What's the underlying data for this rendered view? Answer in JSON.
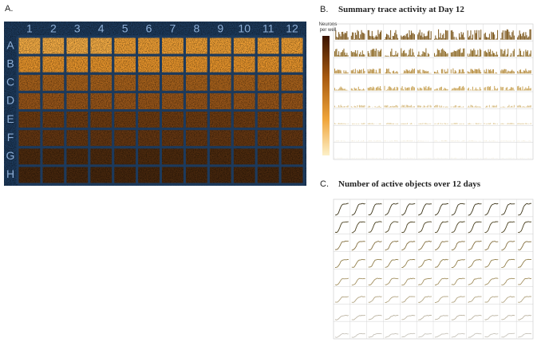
{
  "panel_a": {
    "label": "A.",
    "columns": [
      "1",
      "2",
      "3",
      "4",
      "5",
      "6",
      "7",
      "8",
      "9",
      "10",
      "11",
      "12"
    ],
    "rows": [
      "A",
      "B",
      "C",
      "D",
      "E",
      "F",
      "G",
      "H"
    ]
  },
  "panel_b": {
    "label": "B.",
    "title": "Summary trace activity at Day 12",
    "colorbar_label": "Neurons per well"
  },
  "panel_c": {
    "label": "C.",
    "title": "Number of active objects over 12 days"
  }
}
